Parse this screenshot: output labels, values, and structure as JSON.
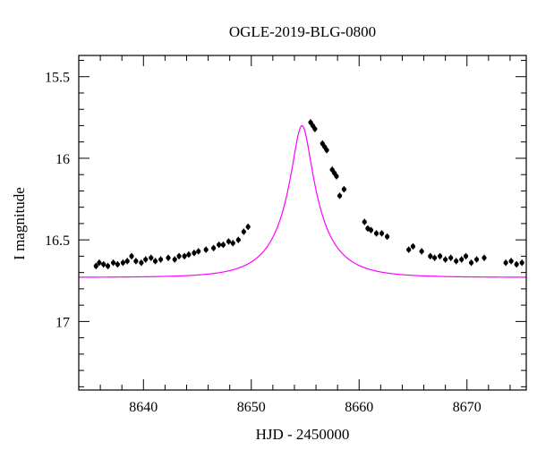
{
  "chart_data": {
    "type": "scatter",
    "title": "OGLE-2019-BLG-0800",
    "xlabel": "HJD - 2450000",
    "ylabel": "I magnitude",
    "xlim": [
      8634,
      8675.5
    ],
    "ylim": [
      17.42,
      15.37
    ],
    "y_inverted": true,
    "x_ticks": [
      8640,
      8650,
      8660,
      8670
    ],
    "x_tick_labels": [
      "8640",
      "8650",
      "8660",
      "8670"
    ],
    "y_ticks": [
      15.5,
      16,
      16.5,
      17
    ],
    "y_tick_labels": [
      "15.5",
      "16",
      "16.5",
      "17"
    ],
    "grid": false,
    "colors": {
      "model": "#ff00ff",
      "points": "#000000"
    },
    "model": {
      "name": "",
      "t0": 8654.7,
      "u0": 0.21,
      "tE": 4.2,
      "baseline_mag": 16.73,
      "peak_mag": 15.8
    },
    "points": {
      "x": [
        8635.6,
        8635.9,
        8636.3,
        8636.7,
        8637.2,
        8637.6,
        8638.1,
        8638.5,
        8638.9,
        8639.3,
        8639.8,
        8640.2,
        8640.7,
        8641.1,
        8641.6,
        8642.3,
        8642.9,
        8643.3,
        8643.8,
        8644.2,
        8644.7,
        8645.1,
        8645.8,
        8646.5,
        8647.0,
        8647.4,
        8647.9,
        8648.3,
        8648.8,
        8649.3,
        8649.7,
        8655.5,
        8655.7,
        8655.9,
        8656.6,
        8656.8,
        8657.0,
        8657.5,
        8657.7,
        8657.9,
        8658.2,
        8658.6,
        8660.5,
        8660.8,
        8661.1,
        8661.6,
        8662.1,
        8662.6,
        8664.6,
        8665.0,
        8665.8,
        8666.6,
        8667.0,
        8667.5,
        8668.0,
        8668.5,
        8669.0,
        8669.5,
        8669.9,
        8670.4,
        8670.9,
        8671.6,
        8673.6,
        8674.1,
        8674.6,
        8675.1
      ],
      "y": [
        16.66,
        16.64,
        16.65,
        16.66,
        16.64,
        16.65,
        16.64,
        16.63,
        16.6,
        16.63,
        16.64,
        16.62,
        16.61,
        16.63,
        16.62,
        16.61,
        16.62,
        16.6,
        16.6,
        16.59,
        16.58,
        16.57,
        16.56,
        16.55,
        16.53,
        16.53,
        16.51,
        16.52,
        16.5,
        16.45,
        16.42,
        15.78,
        15.8,
        15.82,
        15.91,
        15.93,
        15.95,
        16.07,
        16.09,
        16.11,
        16.23,
        16.19,
        16.39,
        16.43,
        16.44,
        16.46,
        16.46,
        16.48,
        16.56,
        16.54,
        16.57,
        16.6,
        16.61,
        16.6,
        16.62,
        16.61,
        16.63,
        16.62,
        16.6,
        16.64,
        16.62,
        16.61,
        16.64,
        16.63,
        16.65,
        16.64
      ]
    }
  }
}
